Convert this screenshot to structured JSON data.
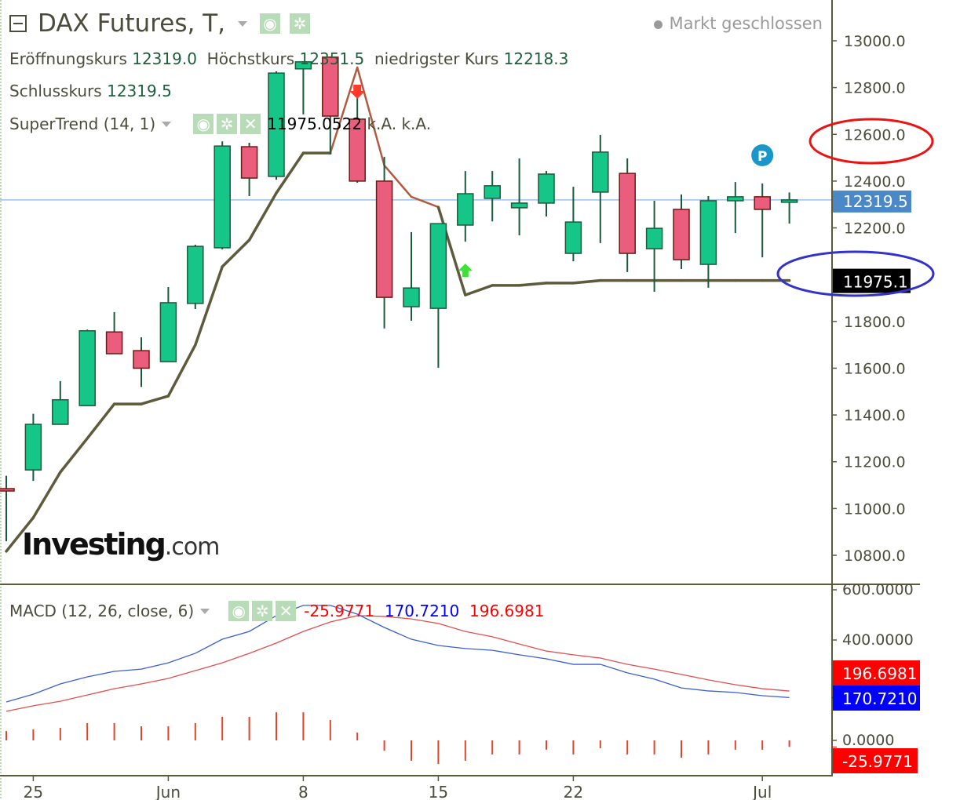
{
  "header": {
    "title": "DAX Futures, T,",
    "status": "Markt geschlossen",
    "ohlc": [
      {
        "label": "Eröffnungskurs",
        "value": "12319.0"
      },
      {
        "label": "Höchstkurs",
        "value": "12351.5"
      },
      {
        "label": "niedrigster Kurs",
        "value": "12218.3"
      }
    ],
    "close": {
      "label": "Schlusskurs",
      "value": "12319.5"
    },
    "indicator": {
      "label": "SuperTrend (14, 1)",
      "value": "11975.0522",
      "extra1": "k.A.",
      "extra2": "k.A."
    },
    "icons": [
      "eye-icon",
      "gear-icon",
      "close-icon"
    ]
  },
  "macd_header": {
    "label": "MACD (12, 26, close, 6)",
    "hist": "-25.9771",
    "macd": "170.7210",
    "signal": "196.6981"
  },
  "price_axis": {
    "ticks": [
      "13000.0",
      "12800.0",
      "12600.0",
      "12400.0",
      "12200.0",
      "11800.0",
      "11600.0",
      "11400.0",
      "11200.0",
      "11000.0",
      "10800.0"
    ],
    "tick_values": [
      13000,
      12800,
      12600,
      12400,
      12200,
      11800,
      11600,
      11400,
      11200,
      11000,
      10800
    ],
    "last_price_tag": "12319.5",
    "supertrend_tag": "11975.1"
  },
  "macd_axis": {
    "ticks": [
      "600.0000",
      "400.0000",
      "0.0000"
    ],
    "tick_values": [
      600,
      400,
      0
    ],
    "tags": [
      {
        "text": "196.6981",
        "value": 196.6981,
        "color": "#ff0000"
      },
      {
        "text": "170.7210",
        "value": 170.721,
        "color": "#0000ff"
      },
      {
        "text": "-25.9771",
        "value": -25.9771,
        "color": "#ff0000"
      }
    ]
  },
  "x_axis": {
    "labels": [
      {
        "text": "25",
        "index": 1
      },
      {
        "text": "Jun",
        "index": 6
      },
      {
        "text": "8",
        "index": 11
      },
      {
        "text": "15",
        "index": 16
      },
      {
        "text": "22",
        "index": 21
      },
      {
        "text": "Jul",
        "index": 28
      }
    ]
  },
  "watermark": {
    "brand": "Investing",
    "suffix": ".com"
  },
  "marker": {
    "text": "P",
    "index": 28
  },
  "colors": {
    "up": "#16c689",
    "up_border": "#1b5a3c",
    "down": "#ea5d7c",
    "down_border": "#6a1b10",
    "supertrend_up": "#5e5a3c",
    "supertrend_down": "#b25a40",
    "macd": "#3a5fd0",
    "signal": "#e05050",
    "hist": "#e0442a",
    "last_price": "#4a88c8",
    "oval_red": "#ee1111",
    "oval_blue": "#3333cc"
  },
  "chart_data": [
    {
      "type": "candlestick",
      "x": [
        "May 22",
        "May 25",
        "May 26",
        "May 27",
        "May 28",
        "May 29",
        "Jun 1",
        "Jun 2",
        "Jun 3",
        "Jun 4",
        "Jun 5",
        "Jun 8",
        "Jun 9",
        "Jun 10",
        "Jun 11",
        "Jun 12",
        "Jun 15",
        "Jun 16",
        "Jun 17",
        "Jun 18",
        "Jun 19",
        "Jun 22",
        "Jun 23",
        "Jun 24",
        "Jun 25",
        "Jun 26",
        "Jun 29",
        "Jun 30",
        "Jul 1",
        "Jul 2"
      ],
      "open": [
        11085,
        11165,
        11360,
        11440,
        11755,
        11675,
        11628,
        11877,
        12115,
        12547,
        12420,
        12880,
        12930,
        12665,
        12400,
        11863,
        11856,
        12212,
        12326,
        12286,
        12306,
        12091,
        12353,
        12433,
        12111,
        12279,
        12044,
        12316,
        12333,
        12319.0
      ],
      "high": [
        11140,
        11405,
        11545,
        11765,
        11840,
        11732,
        11947,
        12128,
        12570,
        12564,
        12869,
        12913,
        12933,
        12772,
        12504,
        12182,
        12218,
        12443,
        12443,
        12497,
        12443,
        12376,
        12598,
        12497,
        12316,
        12343,
        12336,
        12396,
        12390,
        12351.5
      ],
      "low": [
        10860,
        11118,
        11360,
        11440,
        11662,
        11520,
        11628,
        11853,
        12108,
        12336,
        12406,
        12685,
        12514,
        12393,
        11770,
        11803,
        11602,
        12141,
        12228,
        12168,
        12249,
        12057,
        12135,
        12011,
        11927,
        12024,
        11944,
        12178,
        12074,
        12218.3
      ],
      "close": [
        11075,
        11360,
        11465,
        11760,
        11662,
        11600,
        11880,
        12121,
        12550,
        12413,
        12862,
        12910,
        12678,
        12400,
        11903,
        11943,
        12218,
        12346,
        12380,
        12306,
        12430,
        12225,
        12524,
        12091,
        12198,
        12064,
        12316,
        12333,
        12279,
        12319.5
      ],
      "supertrend": [
        10817,
        10961,
        11155,
        11300,
        11447,
        11447,
        11481,
        11699,
        12034,
        12148,
        12349,
        12520,
        12520,
        12886,
        12467,
        12333,
        12289,
        11913,
        11954,
        11954,
        11964,
        11964,
        11975,
        11975,
        11975,
        11975,
        11975,
        11975,
        11975,
        11975.1
      ],
      "supertrend_down_range": [
        12,
        16
      ],
      "signals": [
        {
          "index": 13,
          "type": "sell"
        },
        {
          "index": 17,
          "type": "buy"
        }
      ],
      "ylim": [
        10750,
        13150
      ],
      "grid": false
    },
    {
      "type": "macd",
      "macd": [
        153,
        184,
        225,
        253,
        275,
        284,
        309,
        347,
        403,
        434,
        497,
        538,
        538,
        503,
        450,
        403,
        378,
        366,
        359,
        341,
        325,
        303,
        303,
        269,
        244,
        209,
        197,
        191,
        178,
        170.721
      ],
      "signal": [
        116,
        138,
        156,
        181,
        206,
        225,
        247,
        278,
        309,
        347,
        388,
        434,
        472,
        497,
        494,
        484,
        466,
        434,
        413,
        384,
        356,
        341,
        328,
        303,
        284,
        263,
        241,
        222,
        206,
        196.6981
      ],
      "histogram": [
        37,
        44,
        50,
        69,
        69,
        56,
        56,
        69,
        94,
        94,
        112,
        112,
        81,
        31,
        -41,
        -81,
        -94,
        -81,
        -56,
        -56,
        -37,
        -56,
        -31,
        -56,
        -56,
        -69,
        -56,
        -37,
        -37,
        -25.9771
      ],
      "ylim": [
        -140,
        620
      ]
    }
  ]
}
